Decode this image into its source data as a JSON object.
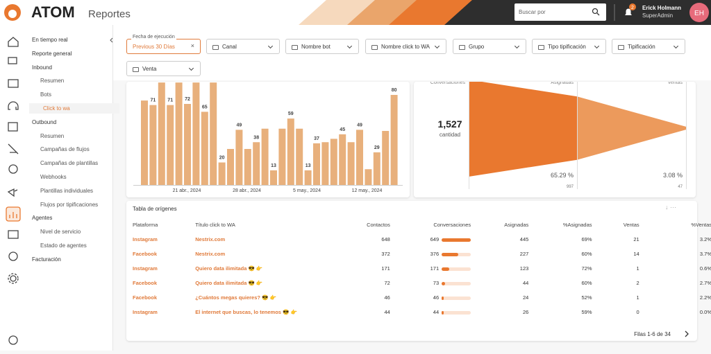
{
  "header": {
    "logo": "ATOM",
    "section": "Reportes",
    "search_placeholder": "Buscar por",
    "notifications": 2,
    "user_name": "Erick Holmann",
    "user_role": "SuperAdmin",
    "avatar_initials": "EH"
  },
  "nav": [
    {
      "label": "En tiempo real",
      "level": "main"
    },
    {
      "label": "Reporte general",
      "level": "main"
    },
    {
      "label": "Inbound",
      "level": "main"
    },
    {
      "label": "Resumen",
      "level": "sub"
    },
    {
      "label": "Bots",
      "level": "sub"
    },
    {
      "label": "Click to wa",
      "level": "sub",
      "active": true
    },
    {
      "label": "Outbound",
      "level": "main"
    },
    {
      "label": "Resumen",
      "level": "sub"
    },
    {
      "label": "Campañas de flujos",
      "level": "sub"
    },
    {
      "label": "Campañas de plantillas",
      "level": "sub"
    },
    {
      "label": "Webhooks",
      "level": "sub"
    },
    {
      "label": "Plantillas individuales",
      "level": "sub"
    },
    {
      "label": "Flujos por tipificaciones",
      "level": "sub"
    },
    {
      "label": "Agentes",
      "level": "main"
    },
    {
      "label": "Nivel de servicio",
      "level": "sub"
    },
    {
      "label": "Estado de agentes",
      "level": "sub"
    },
    {
      "label": "Facturación",
      "level": "main"
    }
  ],
  "filters": {
    "date_label": "Fecha de ejecución",
    "date_value": "Previous 30 Días",
    "dropdowns": [
      "Canal",
      "Nombre bot",
      "Nombre click to WA",
      "Grupo",
      "Tipo tipificación",
      "Tipificación",
      "Venta"
    ]
  },
  "bar_chart": {
    "type": "bar",
    "color": "#e8b07c",
    "values": [
      75,
      71,
      91,
      71,
      91,
      72,
      91,
      65,
      91,
      20,
      32,
      49,
      32,
      38,
      50,
      13,
      50,
      59,
      50,
      13,
      37,
      38,
      41,
      45,
      38,
      49,
      14,
      29,
      48,
      80
    ],
    "value_labels": [
      null,
      71,
      null,
      71,
      null,
      72,
      null,
      65,
      null,
      20,
      null,
      49,
      null,
      38,
      null,
      13,
      null,
      59,
      null,
      13,
      37,
      null,
      null,
      45,
      null,
      49,
      null,
      29,
      null,
      80
    ],
    "x_labels": [
      "21 abr., 2024",
      "28 abr., 2024",
      "5 may., 2024",
      "12 may., 2024"
    ]
  },
  "funnel": {
    "stages": [
      {
        "name": "Conversaciones",
        "value": 1527,
        "label": "1,527",
        "caption": "cantidad"
      },
      {
        "name": "Asignadas",
        "value": 997,
        "percent": 65.29,
        "percent_label": "65.29 %"
      },
      {
        "name": "Ventas",
        "value": 47,
        "percent": 3.08,
        "percent_label": "3.08 %"
      }
    ]
  },
  "table": {
    "title": "Tabla de orígenes",
    "columns": [
      "Plataforma",
      "Título click to WA",
      "Contactos",
      "Conversaciones",
      "Asignadas",
      "%Asignadas",
      "Ventas",
      "%Ventas"
    ],
    "rows": [
      [
        "Instagram",
        "Nestrix.com",
        648,
        649,
        445,
        "69%",
        21,
        "3.2%"
      ],
      [
        "Facebook",
        "Nestrix.com",
        372,
        376,
        227,
        "60%",
        14,
        "3.7%"
      ],
      [
        "Instagram",
        "Quiero data ilimitada 😎 👉",
        171,
        171,
        123,
        "72%",
        1,
        "0.6%"
      ],
      [
        "Facebook",
        "Quiero data ilimitada 😎 👉",
        72,
        73,
        44,
        "60%",
        2,
        "2.7%"
      ],
      [
        "Facebook",
        "¿Cuántos megas quieres? 😎 👉",
        46,
        46,
        24,
        "52%",
        1,
        "2.2%"
      ],
      [
        "Instagram",
        "El internet que buscas, lo tenemos 😎 👉",
        44,
        44,
        26,
        "59%",
        0,
        "0.0%"
      ]
    ],
    "footer": "Filas 1-6 de 34"
  }
}
